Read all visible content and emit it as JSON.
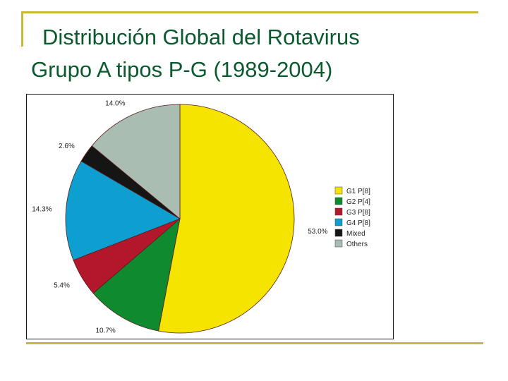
{
  "slide": {
    "title_line1": "Distribución Global del Rotavirus",
    "title_line2": "Grupo A tipos P-G (1989-2004)",
    "accent_color": "#c9b83a",
    "title_color": "#0b5a2f"
  },
  "chart_data": {
    "type": "pie",
    "title": "",
    "legend_position": "right",
    "slices": [
      {
        "name": "G1 P[8]",
        "value": 53.0,
        "label": "53.0%",
        "color": "#f4e400"
      },
      {
        "name": "G2 P[4]",
        "value": 10.7,
        "label": "10.7%",
        "color": "#0f8a2e"
      },
      {
        "name": "G3 P[8]",
        "value": 5.4,
        "label": "5.4%",
        "color": "#b3172b"
      },
      {
        "name": "G4 P[8]",
        "value": 14.3,
        "label": "14.3%",
        "color": "#0c9fd0"
      },
      {
        "name": "Mixed",
        "value": 2.6,
        "label": "2.6%",
        "color": "#151515"
      },
      {
        "name": "Others",
        "value": 14.0,
        "label": "14.0%",
        "color": "#a9bdb2"
      }
    ]
  }
}
